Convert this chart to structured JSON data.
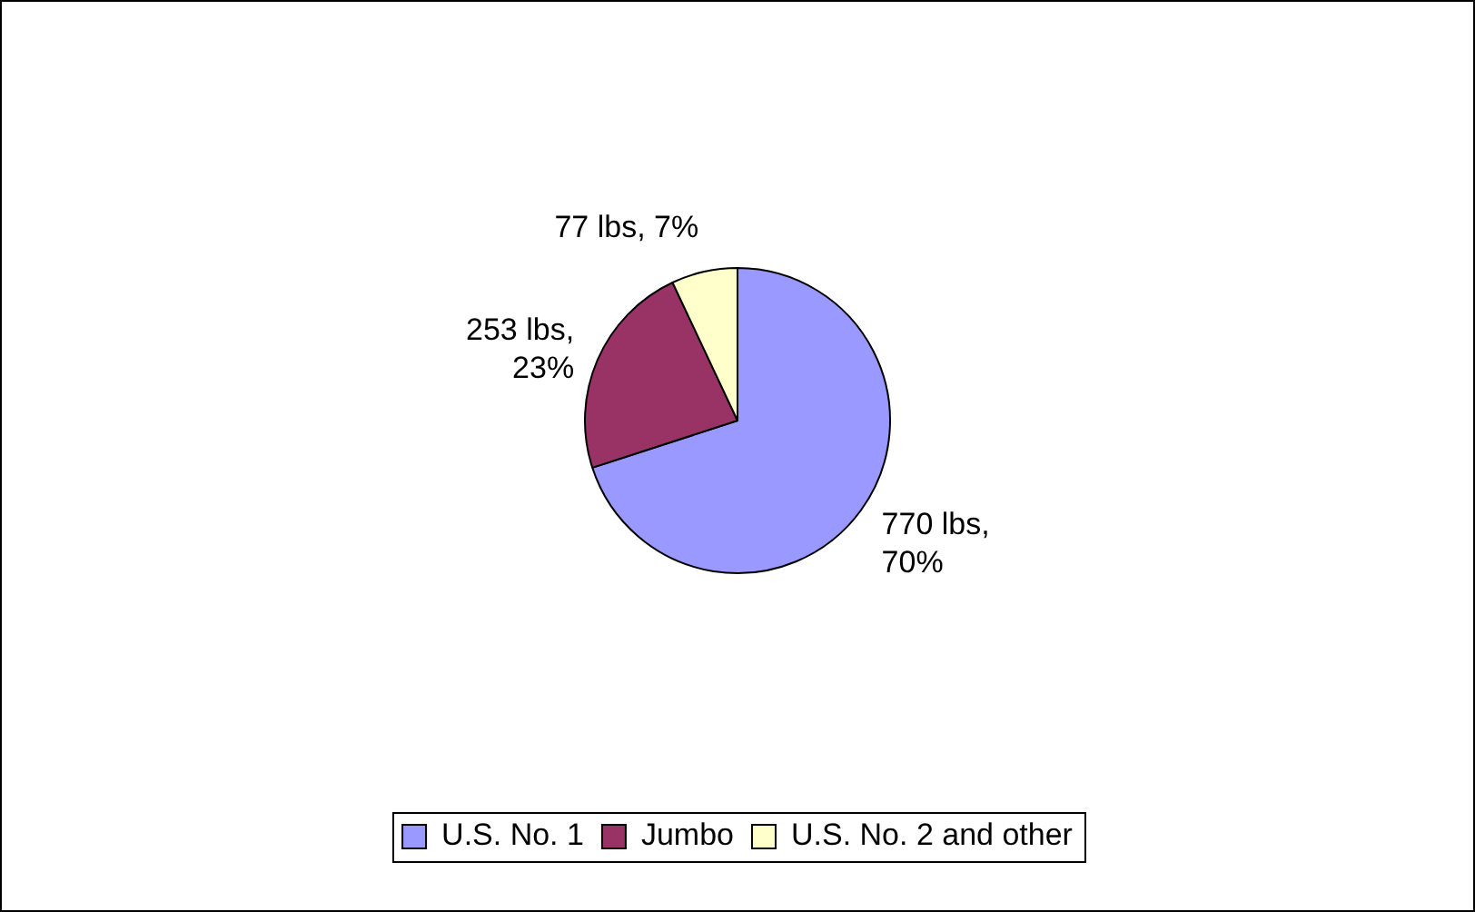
{
  "chart_data": {
    "type": "pie",
    "categories": [
      "U.S. No. 1",
      "Jumbo",
      "U.S. No. 2 and other"
    ],
    "values": [
      770,
      253,
      77
    ],
    "colors": [
      "#9999ff",
      "#993366",
      "#ffffcc"
    ],
    "value_labels": [
      "770 lbs, 70%",
      "253 lbs, 23%",
      "77 lbs, 7%"
    ],
    "legend": "bottom"
  }
}
